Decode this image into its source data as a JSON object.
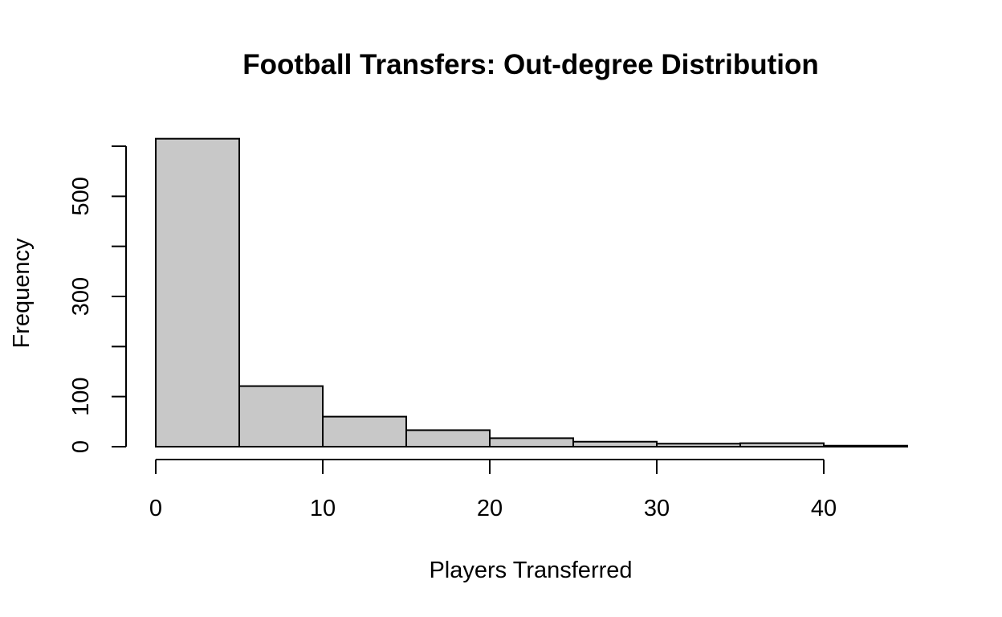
{
  "chart_data": {
    "type": "bar",
    "title": "Football Transfers: Out-degree Distribution",
    "xlabel": "Players Transferred",
    "ylabel": "Frequency",
    "bin_edges": [
      0,
      5,
      10,
      15,
      20,
      25,
      30,
      35,
      40,
      45
    ],
    "values": [
      615,
      121,
      60,
      33,
      17,
      10,
      6,
      7,
      2
    ],
    "xlim": [
      0,
      45
    ],
    "ylim": [
      0,
      600
    ],
    "x_ticks": [
      0,
      10,
      20,
      30,
      40
    ],
    "y_ticks": [
      0,
      100,
      200,
      300,
      400,
      500,
      600
    ],
    "y_tick_labels": [
      "0",
      "100",
      "",
      "300",
      "",
      "500",
      ""
    ],
    "bar_color": "#c8c8c8",
    "grid": false,
    "legend": "none"
  }
}
